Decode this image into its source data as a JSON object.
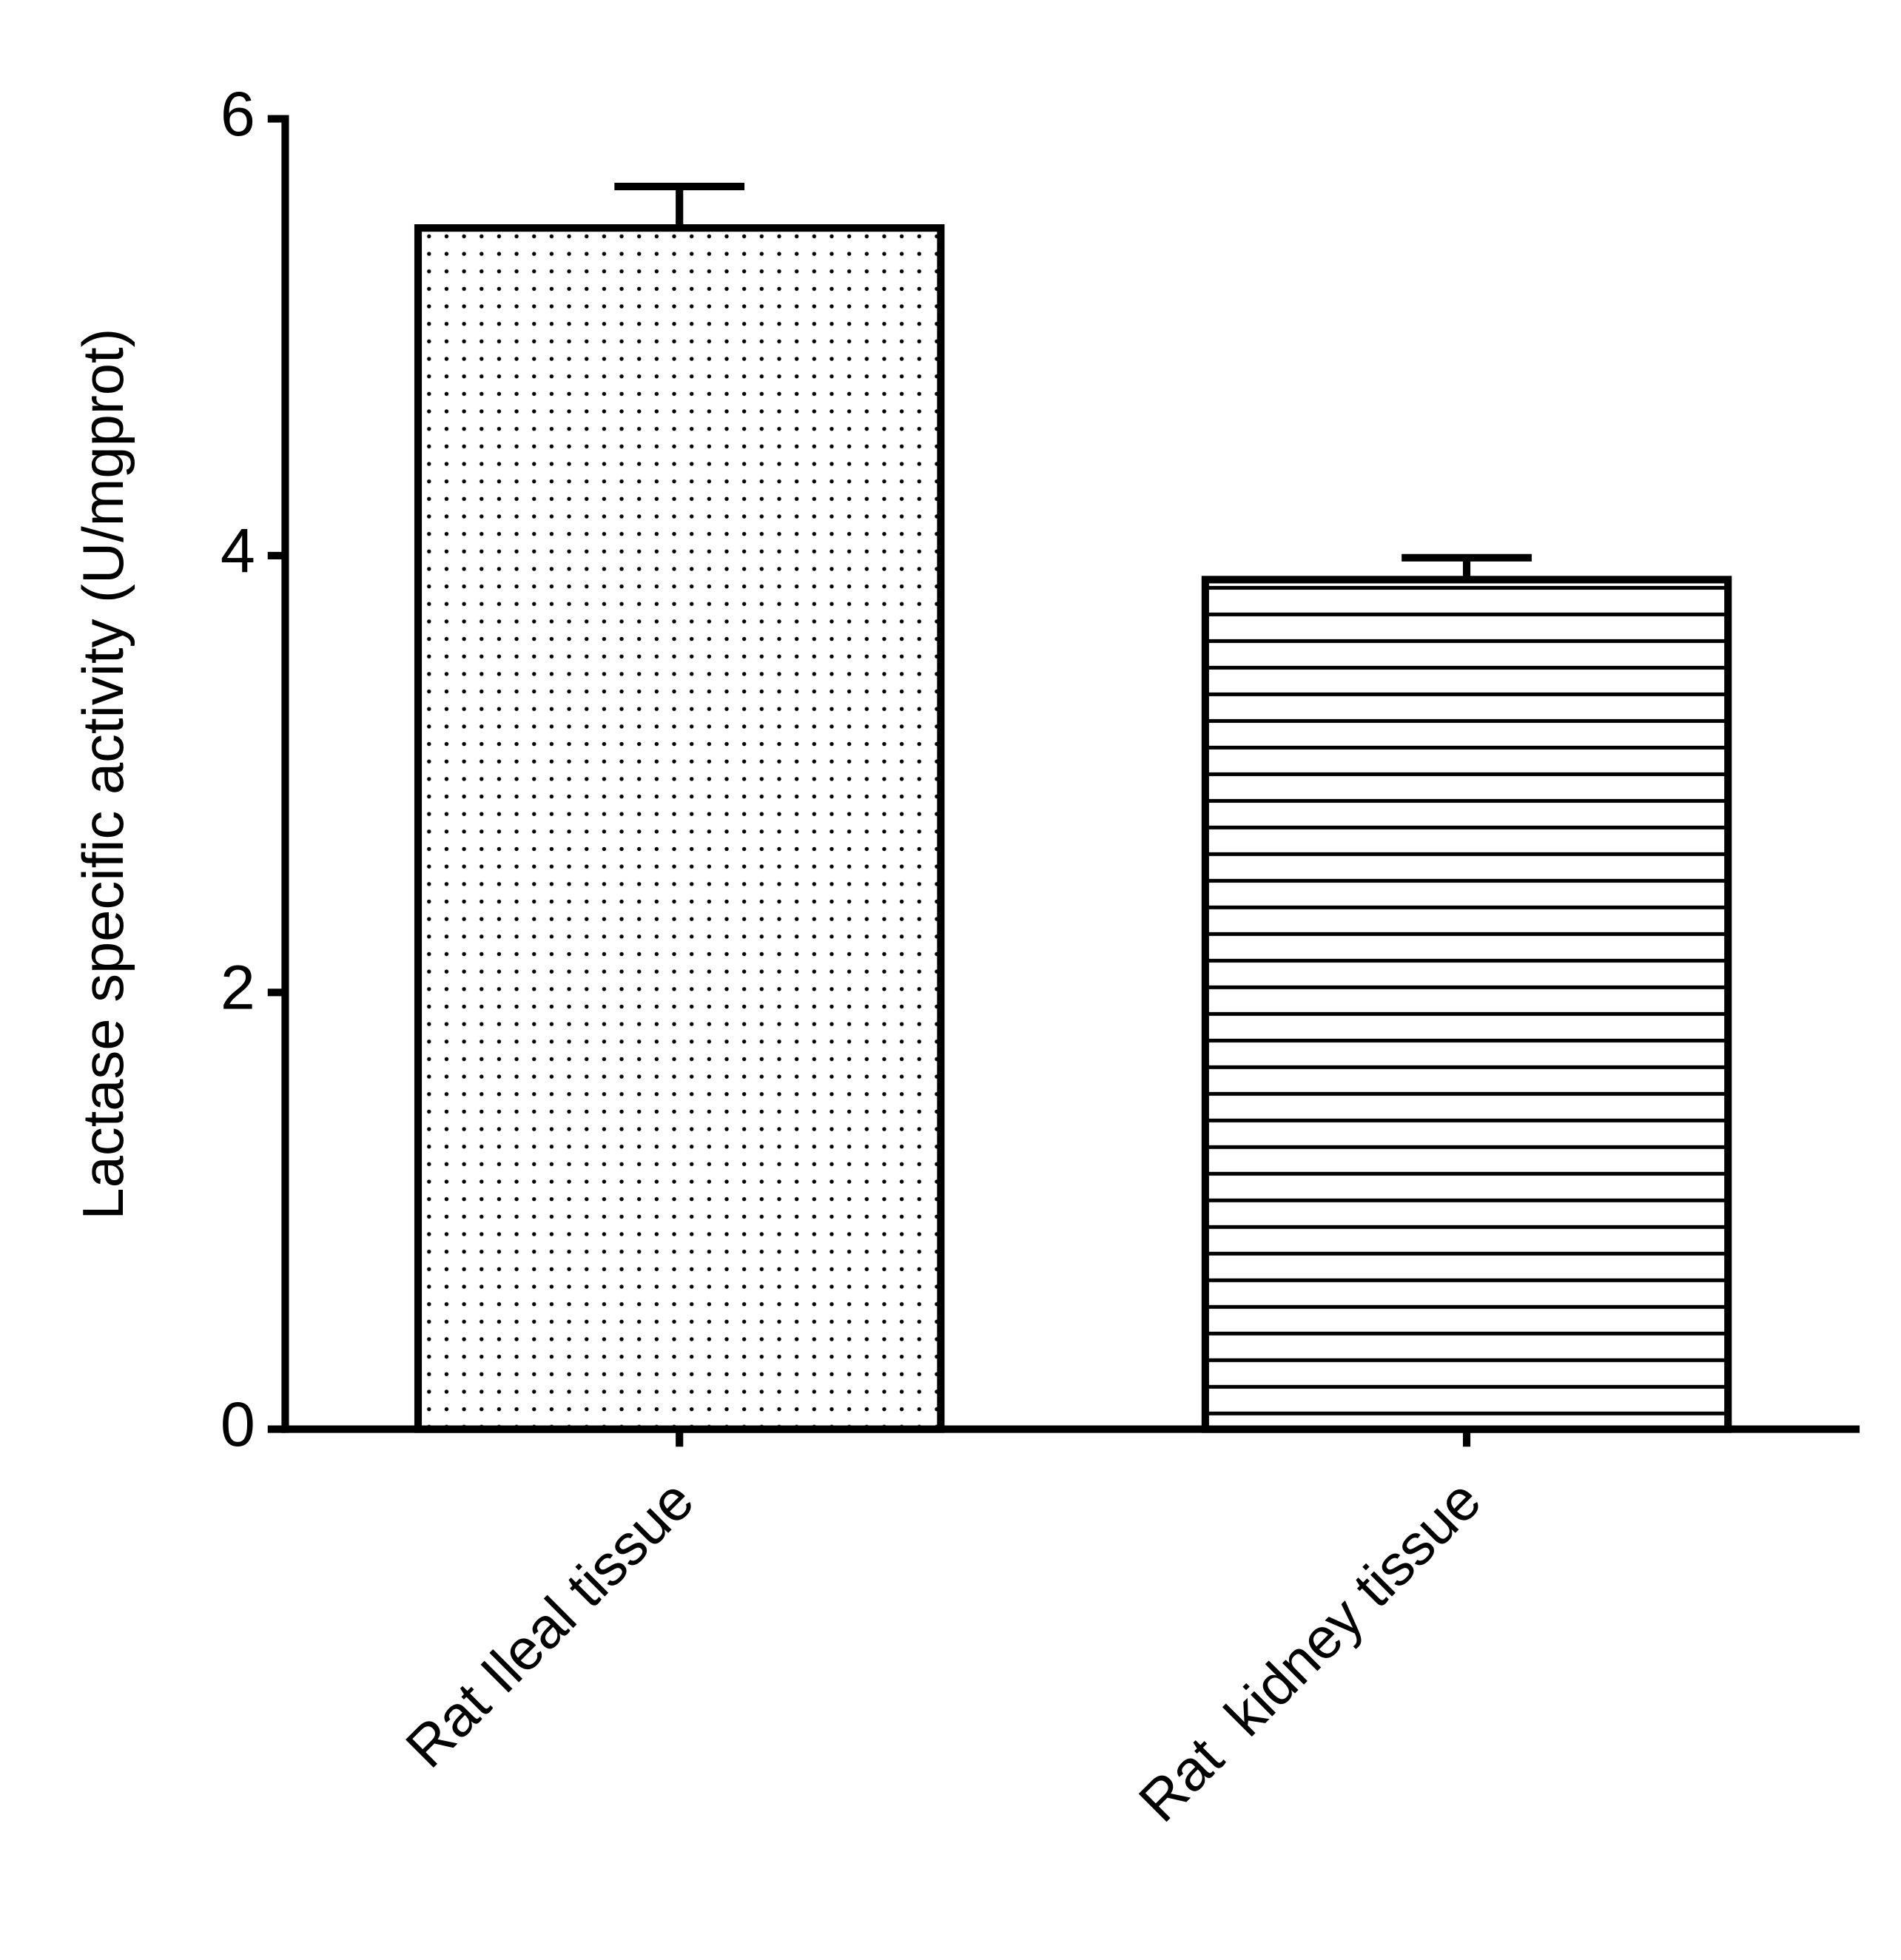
{
  "chart_data": {
    "type": "bar",
    "y_label": "Lactase specific activity (U/mgprot)",
    "categories": [
      "Rat Ileal tissue",
      "Rat  kidney tissue"
    ],
    "values": [
      5.5,
      3.89
    ],
    "errors": [
      0.19,
      0.1
    ],
    "patterns": [
      "dots",
      "hlines"
    ],
    "color": "#000000",
    "ylim": [
      0,
      6
    ],
    "yticks": [
      0,
      2,
      4,
      6
    ],
    "grid": false
  }
}
